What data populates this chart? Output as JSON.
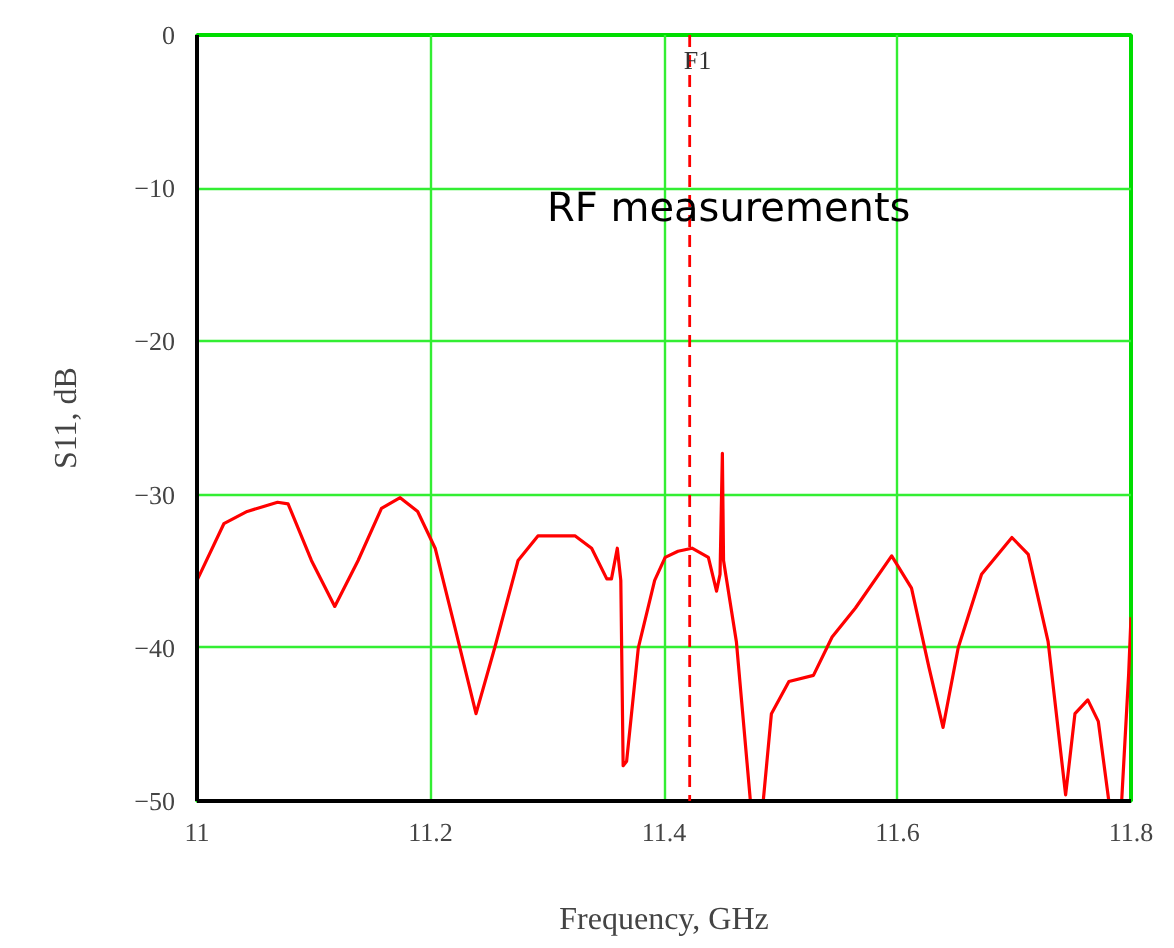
{
  "chart_data": {
    "type": "line",
    "xlabel": "Frequency, GHz",
    "ylabel": "S11, dB",
    "annotations": [
      "RF measurements"
    ],
    "x": [
      11.0,
      11.023,
      11.043,
      11.069,
      11.078,
      11.098,
      11.118,
      11.138,
      11.158,
      11.174,
      11.189,
      11.204,
      11.221,
      11.239,
      11.255,
      11.275,
      11.292,
      11.324,
      11.338,
      11.351,
      11.355,
      11.36,
      11.363,
      11.365,
      11.368,
      11.378,
      11.392,
      11.401,
      11.412,
      11.424,
      11.438,
      11.445,
      11.448,
      11.45,
      11.451,
      11.462,
      11.474,
      11.485,
      11.492,
      11.507,
      11.528,
      11.544,
      11.564,
      11.595,
      11.612,
      11.627,
      11.639,
      11.652,
      11.672,
      11.698,
      11.712,
      11.729,
      11.744,
      11.752,
      11.763,
      11.772,
      11.781,
      11.792,
      11.798,
      11.8
    ],
    "series": [
      {
        "color": "#ff0000",
        "values": [
          -35.6,
          -31.9,
          -31.1,
          -30.5,
          -30.6,
          -34.3,
          -37.3,
          -34.3,
          -30.9,
          -30.2,
          -31.1,
          -33.5,
          -38.7,
          -44.3,
          -40.0,
          -34.3,
          -32.7,
          -32.7,
          -33.5,
          -35.5,
          -35.5,
          -33.5,
          -35.6,
          -47.7,
          -47.4,
          -40.0,
          -35.6,
          -34.1,
          -33.7,
          -33.5,
          -34.1,
          -36.3,
          -35.2,
          -27.3,
          -34.3,
          -39.6,
          -50,
          -50,
          -44.3,
          -42.2,
          -41.8,
          -39.3,
          -37.4,
          -34.0,
          -36.1,
          -41.3,
          -45.2,
          -40.0,
          -35.2,
          -32.8,
          -33.9,
          -39.6,
          -49.6,
          -44.3,
          -43.4,
          -44.8,
          -50,
          -50,
          -41.7,
          -38
        ]
      }
    ],
    "xlim": [
      11,
      11.8
    ],
    "ylim": [
      -50,
      0
    ],
    "xticks": [
      11,
      11.2,
      11.4,
      11.6,
      11.8
    ],
    "yticks": [
      {
        "value": -50,
        "label": "−50"
      },
      {
        "value": -40,
        "label": "−40"
      },
      {
        "value": -30,
        "label": "−30"
      },
      {
        "value": -20,
        "label": "−20"
      },
      {
        "value": -10,
        "label": "−10"
      },
      0
    ],
    "ref_lines": [
      {
        "axis": "x",
        "value": 11.422,
        "label": "F1",
        "color": "#ff0000",
        "line_style": "dashed"
      }
    ],
    "grid": true,
    "line_style": "solid",
    "marker": "none"
  }
}
